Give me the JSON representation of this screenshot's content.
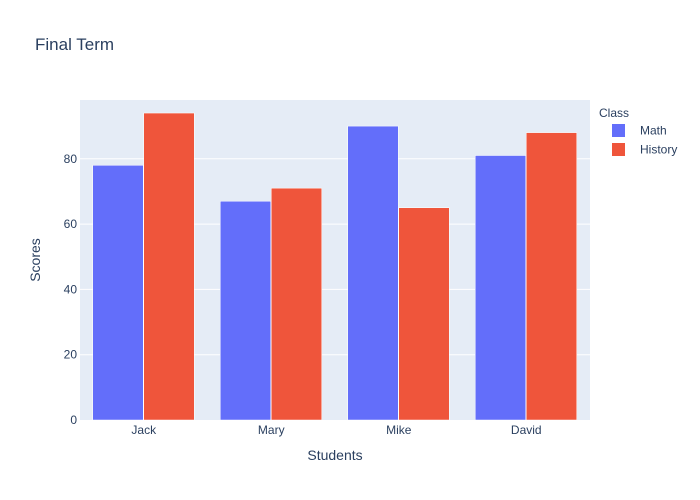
{
  "chart_data": {
    "type": "bar",
    "title": "Final Term",
    "xlabel": "Students",
    "ylabel": "Scores",
    "categories": [
      "Jack",
      "Mary",
      "Mike",
      "David"
    ],
    "series": [
      {
        "name": "Math",
        "values": [
          78,
          67,
          90,
          81
        ],
        "color": "#636efa"
      },
      {
        "name": "History",
        "values": [
          94,
          71,
          65,
          88
        ],
        "color": "#ef553b"
      }
    ],
    "ylim": [
      0,
      98
    ],
    "yticks": [
      0,
      20,
      40,
      60,
      80
    ],
    "grid": true,
    "legend": {
      "title": "Class",
      "position": "top-right"
    },
    "plot_background": "#e5ecf6",
    "gridline_color": "#ffffff",
    "text_color": "#2a3f5f"
  }
}
